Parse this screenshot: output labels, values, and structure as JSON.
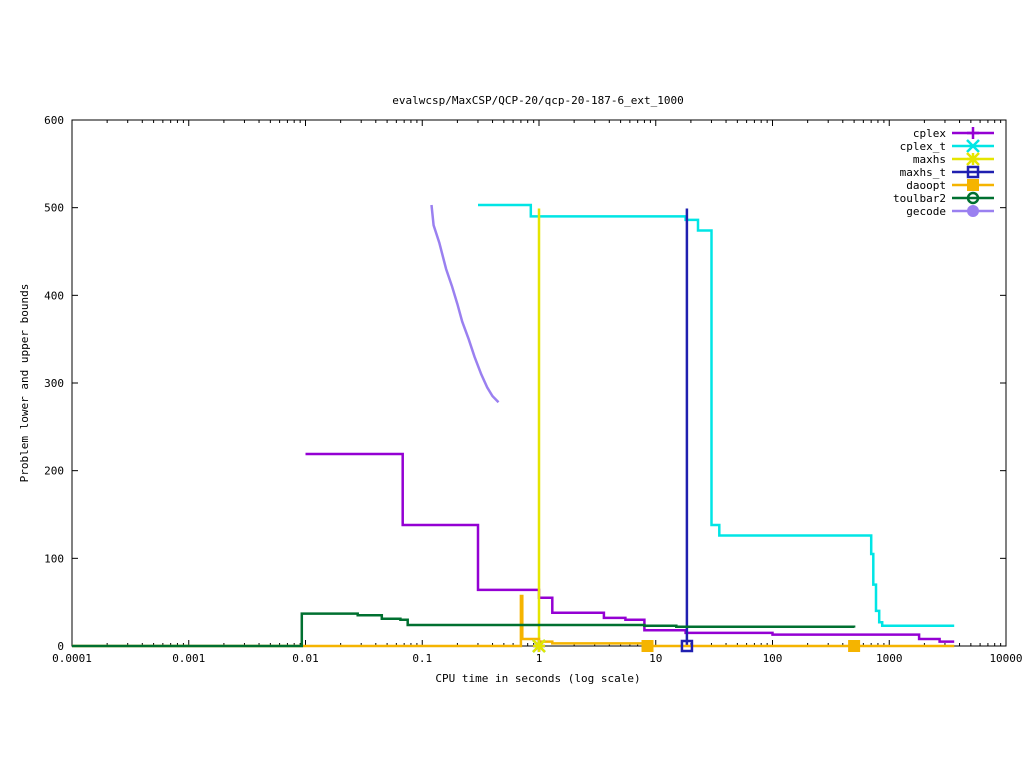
{
  "chart_data": {
    "type": "line",
    "title": "evalwcsp/MaxCSP/QCP-20/qcp-20-187-6_ext_1000",
    "xlabel": "CPU time in seconds (log scale)",
    "ylabel": "Problem lower and upper bounds",
    "xscale": "log",
    "xlim": [
      0.0001,
      10000
    ],
    "ylim": [
      0,
      600
    ],
    "x_ticks": [
      0.0001,
      0.001,
      0.01,
      0.1,
      1,
      10,
      100,
      1000,
      10000
    ],
    "x_tick_labels": [
      "0.0001",
      "0.001",
      "0.01",
      "0.1",
      "1",
      "10",
      "100",
      "1000",
      "10000"
    ],
    "y_ticks": [
      0,
      100,
      200,
      300,
      400,
      500,
      600
    ],
    "y_tick_labels": [
      "0",
      "100",
      "200",
      "300",
      "400",
      "500",
      "600"
    ],
    "grid": false,
    "legend_position": "top-right",
    "series": [
      {
        "name": "cplex",
        "color": "#9400d3",
        "marker": "plus",
        "points": [
          [
            0.01,
            219
          ],
          [
            0.068,
            219
          ],
          [
            0.068,
            138
          ],
          [
            0.3,
            138
          ],
          [
            0.3,
            64
          ],
          [
            1.0,
            64
          ],
          [
            1.0,
            55
          ],
          [
            1.3,
            55
          ],
          [
            1.3,
            38
          ],
          [
            3.6,
            38
          ],
          [
            3.6,
            32
          ],
          [
            5.5,
            32
          ],
          [
            5.5,
            30
          ],
          [
            8.0,
            30
          ],
          [
            8.0,
            18
          ],
          [
            18,
            18
          ],
          [
            18,
            15
          ],
          [
            100,
            15
          ],
          [
            100,
            13
          ],
          [
            1800,
            13
          ],
          [
            1800,
            8
          ],
          [
            2700,
            8
          ],
          [
            2700,
            5
          ],
          [
            3600,
            5
          ]
        ],
        "marker_points": [
          [
            1.0,
            0
          ]
        ]
      },
      {
        "name": "cplex_t",
        "color": "#00e5e5",
        "marker": "x",
        "points": [
          [
            0.3,
            503
          ],
          [
            0.85,
            503
          ],
          [
            0.85,
            490
          ],
          [
            18,
            490
          ],
          [
            18,
            486
          ],
          [
            23,
            486
          ],
          [
            23,
            474
          ],
          [
            30,
            474
          ],
          [
            30,
            138
          ],
          [
            35,
            138
          ],
          [
            35,
            126
          ],
          [
            700,
            126
          ],
          [
            700,
            105
          ],
          [
            730,
            105
          ],
          [
            730,
            70
          ],
          [
            770,
            70
          ],
          [
            770,
            40
          ],
          [
            820,
            40
          ],
          [
            820,
            27
          ],
          [
            870,
            27
          ],
          [
            870,
            23
          ],
          [
            3600,
            23
          ]
        ],
        "marker_points": [
          [
            1.0,
            0
          ]
        ]
      },
      {
        "name": "maxhs",
        "color": "#e5e500",
        "marker": "star",
        "points": [
          [
            1.0,
            0
          ],
          [
            1.0,
            499
          ]
        ],
        "marker_points": [
          [
            1.0,
            0
          ]
        ]
      },
      {
        "name": "maxhs_t",
        "color": "#2020b0",
        "marker": "square",
        "points": [
          [
            18.5,
            0
          ],
          [
            18.5,
            499
          ]
        ],
        "marker_points": [
          [
            18.5,
            0
          ]
        ]
      },
      {
        "name": "daoopt",
        "color": "#f5b400",
        "marker": "filled-square",
        "points": [
          [
            0.0001,
            0
          ],
          [
            0.7,
            0
          ],
          [
            0.7,
            57
          ],
          [
            0.72,
            57
          ],
          [
            0.72,
            8
          ],
          [
            1.0,
            8
          ],
          [
            1.0,
            5
          ],
          [
            1.3,
            5
          ],
          [
            1.3,
            3
          ],
          [
            8.5,
            3
          ],
          [
            8.5,
            0
          ],
          [
            3600,
            0
          ]
        ],
        "marker_points": [
          [
            8.5,
            0
          ],
          [
            500,
            0
          ]
        ]
      },
      {
        "name": "toulbar2",
        "color": "#007030",
        "marker": "circle",
        "points": [
          [
            0.0001,
            0
          ],
          [
            0.0093,
            0
          ],
          [
            0.0093,
            37
          ],
          [
            0.028,
            37
          ],
          [
            0.028,
            35
          ],
          [
            0.045,
            35
          ],
          [
            0.045,
            31
          ],
          [
            0.065,
            31
          ],
          [
            0.065,
            30
          ],
          [
            0.075,
            30
          ],
          [
            0.075,
            24
          ],
          [
            8,
            24
          ],
          [
            8,
            23
          ],
          [
            15,
            23
          ],
          [
            15,
            22
          ],
          [
            500,
            22
          ],
          [
            500,
            21
          ]
        ],
        "marker_points": []
      },
      {
        "name": "gecode",
        "color": "#9a80f0",
        "marker": "filled-circle",
        "points": [
          [
            0.12,
            503
          ],
          [
            0.125,
            480
          ],
          [
            0.14,
            460
          ],
          [
            0.16,
            430
          ],
          [
            0.18,
            410
          ],
          [
            0.2,
            390
          ],
          [
            0.22,
            370
          ],
          [
            0.25,
            350
          ],
          [
            0.28,
            330
          ],
          [
            0.32,
            310
          ],
          [
            0.36,
            295
          ],
          [
            0.4,
            285
          ],
          [
            0.45,
            278
          ]
        ],
        "marker_points": []
      }
    ]
  }
}
